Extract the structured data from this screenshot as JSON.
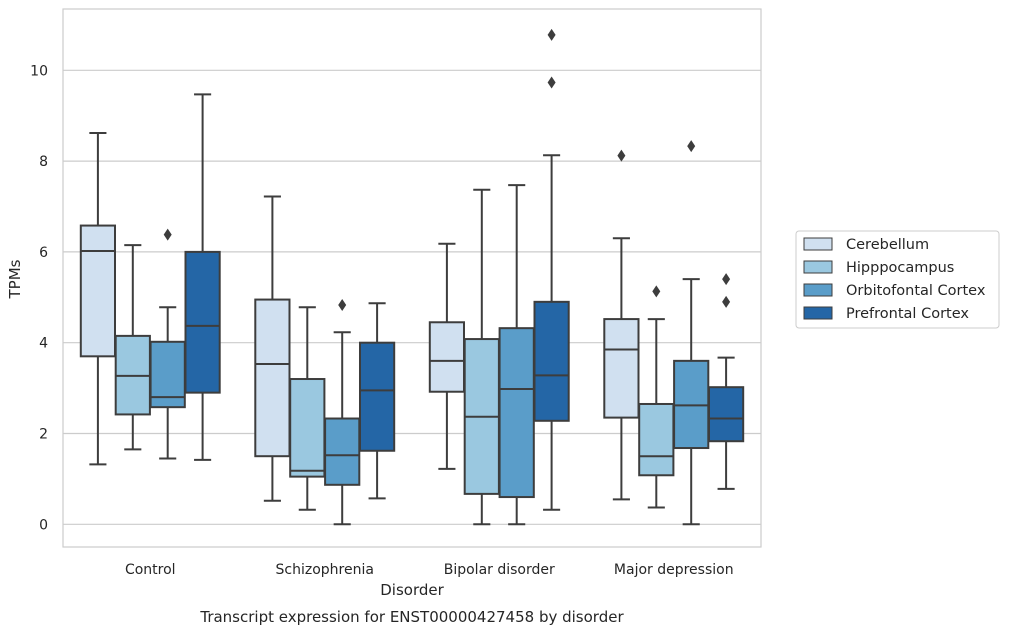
{
  "chart_data": {
    "type": "box",
    "xlabel": "Disorder",
    "ylabel": "TPMs",
    "caption": "Transcript expression for ENST00000427458 by disorder",
    "categories": [
      "Control",
      "Schizophrenia",
      "Bipolar disorder",
      "Major depression"
    ],
    "yticks": [
      "0",
      "2",
      "4",
      "6",
      "8",
      "10"
    ],
    "ylim": [
      -0.5,
      11.35
    ],
    "grid": "horizontal",
    "legend_position": "right",
    "series": [
      {
        "name": "Cerebellum",
        "color": "#d0e0f0",
        "boxes": [
          {
            "whislo": 1.32,
            "q1": 3.7,
            "med": 6.02,
            "q3": 6.58,
            "whishi": 8.62,
            "fliers": []
          },
          {
            "whislo": 0.52,
            "q1": 1.5,
            "med": 3.53,
            "q3": 4.95,
            "whishi": 7.22,
            "fliers": []
          },
          {
            "whislo": 1.22,
            "q1": 2.92,
            "med": 3.6,
            "q3": 4.45,
            "whishi": 6.18,
            "fliers": []
          },
          {
            "whislo": 0.55,
            "q1": 2.35,
            "med": 3.85,
            "q3": 4.52,
            "whishi": 6.3,
            "fliers": [
              8.12
            ]
          }
        ]
      },
      {
        "name": "Hipppocampus",
        "color": "#9ac8e0",
        "boxes": [
          {
            "whislo": 1.65,
            "q1": 2.42,
            "med": 3.27,
            "q3": 4.15,
            "whishi": 6.15,
            "fliers": []
          },
          {
            "whislo": 0.32,
            "q1": 1.05,
            "med": 1.18,
            "q3": 3.2,
            "whishi": 4.78,
            "fliers": []
          },
          {
            "whislo": 0.0,
            "q1": 0.67,
            "med": 2.37,
            "q3": 4.08,
            "whishi": 7.37,
            "fliers": []
          },
          {
            "whislo": 0.37,
            "q1": 1.08,
            "med": 1.5,
            "q3": 2.65,
            "whishi": 4.52,
            "fliers": [
              5.13
            ]
          }
        ]
      },
      {
        "name": "Orbitofontal Cortex",
        "color": "#5a9dc9",
        "boxes": [
          {
            "whislo": 1.45,
            "q1": 2.58,
            "med": 2.8,
            "q3": 4.02,
            "whishi": 4.78,
            "fliers": [
              6.38
            ]
          },
          {
            "whislo": 0.0,
            "q1": 0.87,
            "med": 1.52,
            "q3": 2.33,
            "whishi": 4.23,
            "fliers": [
              4.83
            ]
          },
          {
            "whislo": 0.0,
            "q1": 0.6,
            "med": 2.98,
            "q3": 4.32,
            "whishi": 7.47,
            "fliers": []
          },
          {
            "whislo": 0.0,
            "q1": 1.68,
            "med": 2.62,
            "q3": 3.6,
            "whishi": 5.4,
            "fliers": [
              8.33
            ]
          }
        ]
      },
      {
        "name": "Prefrontal Cortex",
        "color": "#2466a6",
        "boxes": [
          {
            "whislo": 1.42,
            "q1": 2.9,
            "med": 4.37,
            "q3": 6.0,
            "whishi": 9.47,
            "fliers": []
          },
          {
            "whislo": 0.57,
            "q1": 1.62,
            "med": 2.95,
            "q3": 4.0,
            "whishi": 4.87,
            "fliers": []
          },
          {
            "whislo": 0.32,
            "q1": 2.28,
            "med": 3.28,
            "q3": 4.9,
            "whishi": 8.13,
            "fliers": [
              9.73,
              10.78
            ]
          },
          {
            "whislo": 0.78,
            "q1": 1.83,
            "med": 2.33,
            "q3": 3.02,
            "whishi": 3.67,
            "fliers": [
              4.9,
              5.4
            ]
          }
        ]
      }
    ]
  }
}
